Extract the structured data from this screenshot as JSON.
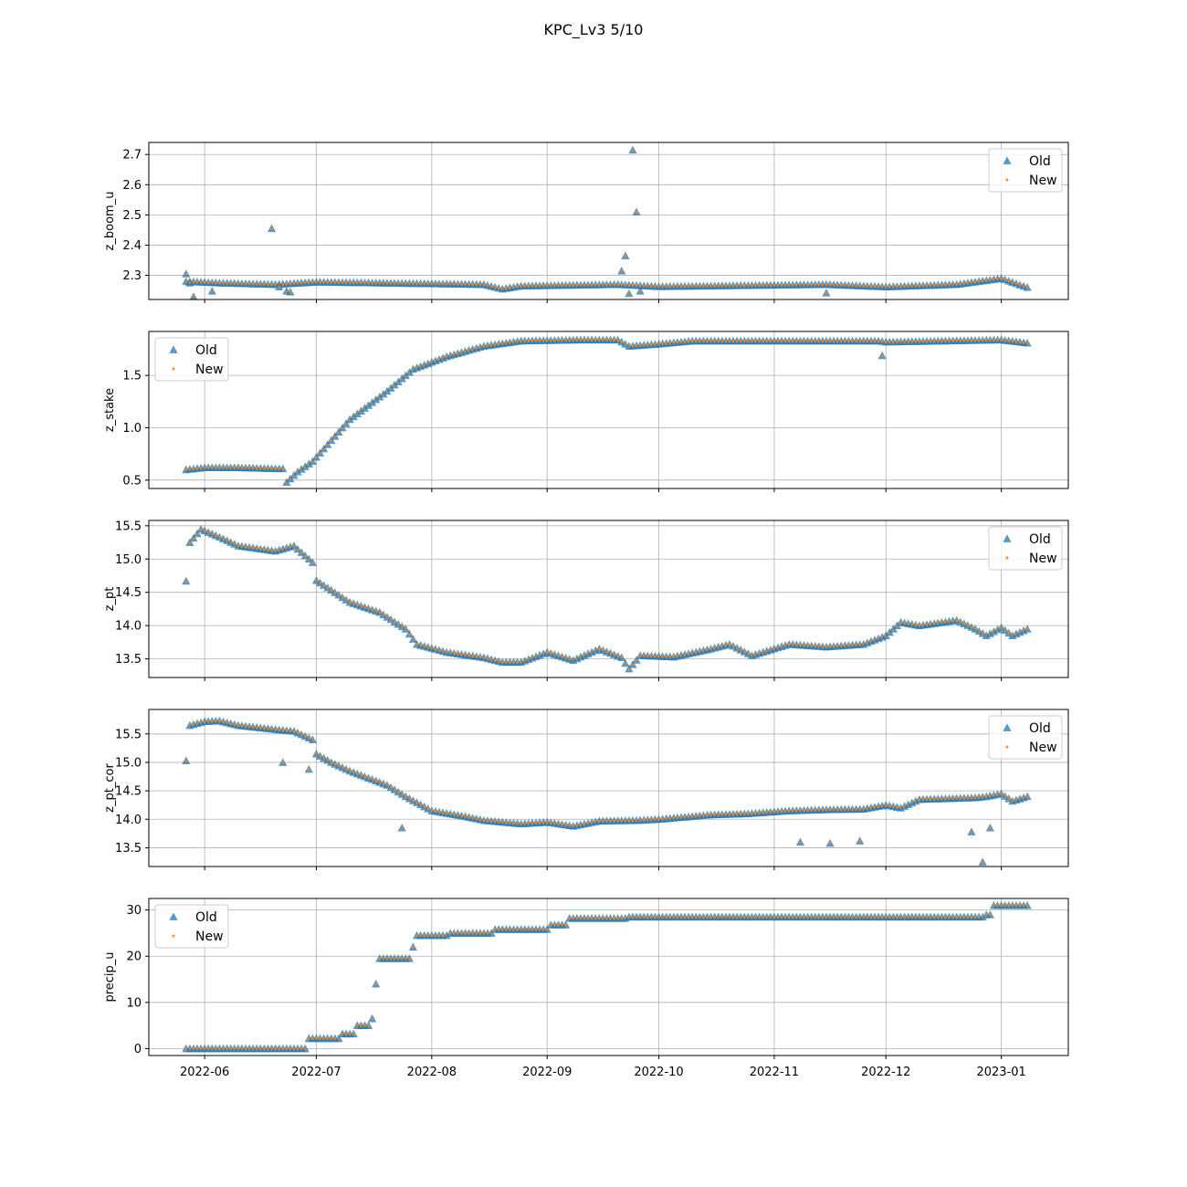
{
  "figure": {
    "title": "KPC_Lv3 5/10"
  },
  "colors": {
    "old": "#1f77b4",
    "new": "#ff7f0e",
    "grid": "#b0b0b0",
    "axis": "#000000"
  },
  "chart_data": [
    {
      "type": "scatter",
      "ylabel": "z_boom_u",
      "ylim": [
        2.22,
        2.74
      ],
      "yticks": [
        2.3,
        2.4,
        2.5,
        2.6,
        2.7
      ],
      "ytick_labels": [
        "2.3",
        "2.4",
        "2.5",
        "2.6",
        "2.7"
      ],
      "xlim": [
        "2022-05-17",
        "2023-01-19"
      ],
      "xticks": [
        "2022-06-01",
        "2022-07-01",
        "2022-08-01",
        "2022-09-01",
        "2022-10-01",
        "2022-11-01",
        "2022-12-01",
        "2023-01-01"
      ],
      "xtick_labels": [],
      "legend": "upper right",
      "grid": true,
      "series": [
        {
          "name": "Old",
          "marker": "triangle",
          "role": "old"
        },
        {
          "name": "New",
          "marker": "dot",
          "role": "new"
        }
      ],
      "profile": [
        [
          "2022-05-27",
          2.28
        ],
        [
          "2022-06-05",
          2.275
        ],
        [
          "2022-06-20",
          2.27
        ],
        [
          "2022-07-01",
          2.278
        ],
        [
          "2022-08-15",
          2.27
        ],
        [
          "2022-08-20",
          2.255
        ],
        [
          "2022-08-25",
          2.265
        ],
        [
          "2022-09-20",
          2.27
        ],
        [
          "2022-10-01",
          2.263
        ],
        [
          "2022-11-15",
          2.27
        ],
        [
          "2022-12-01",
          2.262
        ],
        [
          "2022-12-20",
          2.27
        ],
        [
          "2023-01-01",
          2.29
        ],
        [
          "2023-01-08",
          2.26
        ]
      ],
      "outliers": [
        [
          "2022-05-27",
          2.305
        ],
        [
          "2022-05-28",
          2.275
        ],
        [
          "2022-05-29",
          2.23
        ],
        [
          "2022-06-03",
          2.248
        ],
        [
          "2022-06-19",
          2.455
        ],
        [
          "2022-06-21",
          2.262
        ],
        [
          "2022-06-23",
          2.248
        ],
        [
          "2022-06-24",
          2.245
        ],
        [
          "2022-09-21",
          2.315
        ],
        [
          "2022-09-22",
          2.365
        ],
        [
          "2022-09-23",
          2.24
        ],
        [
          "2022-09-24",
          2.715
        ],
        [
          "2022-09-25",
          2.51
        ],
        [
          "2022-09-26",
          2.248
        ],
        [
          "2022-11-15",
          2.242
        ]
      ]
    },
    {
      "type": "scatter",
      "ylabel": "z_stake",
      "ylim": [
        0.42,
        1.92
      ],
      "yticks": [
        0.5,
        1.0,
        1.5
      ],
      "ytick_labels": [
        "0.5",
        "1.0",
        "1.5"
      ],
      "xlim": [
        "2022-05-17",
        "2023-01-19"
      ],
      "xticks": [
        "2022-06-01",
        "2022-07-01",
        "2022-08-01",
        "2022-09-01",
        "2022-10-01",
        "2022-11-01",
        "2022-12-01",
        "2023-01-01"
      ],
      "xtick_labels": [],
      "legend": "upper left",
      "grid": true,
      "series": [
        {
          "name": "Old",
          "marker": "triangle",
          "role": "old"
        },
        {
          "name": "New",
          "marker": "dot",
          "role": "new"
        }
      ],
      "profile": [
        [
          "2022-05-27",
          0.6
        ],
        [
          "2022-06-01",
          0.62
        ],
        [
          "2022-06-10",
          0.62
        ],
        [
          "2022-06-20",
          0.61
        ],
        [
          "2022-06-22",
          0.61
        ],
        [
          "2022-06-23",
          0.48
        ],
        [
          "2022-06-26",
          0.58
        ],
        [
          "2022-06-30",
          0.68
        ],
        [
          "2022-07-05",
          0.88
        ],
        [
          "2022-07-10",
          1.08
        ],
        [
          "2022-07-20",
          1.35
        ],
        [
          "2022-07-27",
          1.56
        ],
        [
          "2022-08-05",
          1.68
        ],
        [
          "2022-08-15",
          1.78
        ],
        [
          "2022-08-25",
          1.83
        ],
        [
          "2022-09-10",
          1.84
        ],
        [
          "2022-09-20",
          1.84
        ],
        [
          "2022-09-23",
          1.78
        ],
        [
          "2022-10-01",
          1.8
        ],
        [
          "2022-10-10",
          1.83
        ],
        [
          "2022-11-29",
          1.83
        ],
        [
          "2022-12-01",
          1.82
        ],
        [
          "2023-01-01",
          1.84
        ],
        [
          "2023-01-08",
          1.81
        ]
      ],
      "outliers": [
        [
          "2022-11-30",
          1.69
        ]
      ]
    },
    {
      "type": "scatter",
      "ylabel": "z_pt",
      "ylim": [
        13.22,
        15.58
      ],
      "yticks": [
        13.5,
        14.0,
        14.5,
        15.0,
        15.5
      ],
      "ytick_labels": [
        "13.5",
        "14.0",
        "14.5",
        "15.0",
        "15.5"
      ],
      "xlim": [
        "2022-05-17",
        "2023-01-19"
      ],
      "xticks": [
        "2022-06-01",
        "2022-07-01",
        "2022-08-01",
        "2022-09-01",
        "2022-10-01",
        "2022-11-01",
        "2022-12-01",
        "2023-01-01"
      ],
      "xtick_labels": [],
      "legend": "upper right",
      "grid": true,
      "series": [
        {
          "name": "Old",
          "marker": "triangle",
          "role": "old"
        },
        {
          "name": "New",
          "marker": "dot",
          "role": "new"
        }
      ],
      "profile": [
        [
          "2022-05-27",
          14.67
        ],
        [
          "2022-05-28",
          15.25
        ],
        [
          "2022-05-31",
          15.45
        ],
        [
          "2022-06-05",
          15.33
        ],
        [
          "2022-06-10",
          15.2
        ],
        [
          "2022-06-20",
          15.12
        ],
        [
          "2022-06-25",
          15.2
        ],
        [
          "2022-06-30",
          14.95
        ],
        [
          "2022-07-01",
          14.68
        ],
        [
          "2022-07-10",
          14.35
        ],
        [
          "2022-07-18",
          14.2
        ],
        [
          "2022-07-25",
          13.95
        ],
        [
          "2022-07-28",
          13.72
        ],
        [
          "2022-08-05",
          13.6
        ],
        [
          "2022-08-15",
          13.52
        ],
        [
          "2022-08-20",
          13.45
        ],
        [
          "2022-08-25",
          13.45
        ],
        [
          "2022-09-01",
          13.6
        ],
        [
          "2022-09-08",
          13.48
        ],
        [
          "2022-09-15",
          13.65
        ],
        [
          "2022-09-21",
          13.52
        ],
        [
          "2022-09-23",
          13.35
        ],
        [
          "2022-09-26",
          13.55
        ],
        [
          "2022-10-05",
          13.53
        ],
        [
          "2022-10-15",
          13.65
        ],
        [
          "2022-10-20",
          13.72
        ],
        [
          "2022-10-26",
          13.55
        ],
        [
          "2022-11-05",
          13.72
        ],
        [
          "2022-11-15",
          13.68
        ],
        [
          "2022-11-25",
          13.72
        ],
        [
          "2022-12-01",
          13.85
        ],
        [
          "2022-12-05",
          14.05
        ],
        [
          "2022-12-10",
          14.0
        ],
        [
          "2022-12-20",
          14.08
        ],
        [
          "2022-12-25",
          13.95
        ],
        [
          "2022-12-28",
          13.85
        ],
        [
          "2023-01-01",
          13.97
        ],
        [
          "2023-01-04",
          13.85
        ],
        [
          "2023-01-08",
          13.95
        ]
      ],
      "outliers": []
    },
    {
      "type": "scatter",
      "ylabel": "z_pt_cor",
      "ylim": [
        13.17,
        15.93
      ],
      "yticks": [
        13.5,
        14.0,
        14.5,
        15.0,
        15.5
      ],
      "ytick_labels": [
        "13.5",
        "14.0",
        "14.5",
        "15.0",
        "15.5"
      ],
      "xlim": [
        "2022-05-17",
        "2023-01-19"
      ],
      "xticks": [
        "2022-06-01",
        "2022-07-01",
        "2022-08-01",
        "2022-09-01",
        "2022-10-01",
        "2022-11-01",
        "2022-12-01",
        "2023-01-01"
      ],
      "xtick_labels": [],
      "legend": "upper right",
      "grid": true,
      "series": [
        {
          "name": "Old",
          "marker": "triangle",
          "role": "old"
        },
        {
          "name": "New",
          "marker": "dot",
          "role": "new"
        }
      ],
      "profile": [
        [
          "2022-05-27",
          15.03
        ],
        [
          "2022-05-28",
          15.65
        ],
        [
          "2022-06-01",
          15.72
        ],
        [
          "2022-06-05",
          15.73
        ],
        [
          "2022-06-10",
          15.65
        ],
        [
          "2022-06-20",
          15.58
        ],
        [
          "2022-06-25",
          15.55
        ],
        [
          "2022-06-30",
          15.4
        ],
        [
          "2022-07-01",
          15.15
        ],
        [
          "2022-07-05",
          15.0
        ],
        [
          "2022-07-10",
          14.85
        ],
        [
          "2022-07-20",
          14.6
        ],
        [
          "2022-07-25",
          14.4
        ],
        [
          "2022-08-01",
          14.15
        ],
        [
          "2022-08-10",
          14.05
        ],
        [
          "2022-08-15",
          13.98
        ],
        [
          "2022-08-25",
          13.92
        ],
        [
          "2022-09-01",
          13.95
        ],
        [
          "2022-09-08",
          13.88
        ],
        [
          "2022-09-15",
          13.97
        ],
        [
          "2022-09-25",
          13.98
        ],
        [
          "2022-10-01",
          14.0
        ],
        [
          "2022-10-15",
          14.08
        ],
        [
          "2022-10-25",
          14.1
        ],
        [
          "2022-11-05",
          14.15
        ],
        [
          "2022-11-15",
          14.17
        ],
        [
          "2022-11-25",
          14.18
        ],
        [
          "2022-12-01",
          14.25
        ],
        [
          "2022-12-05",
          14.2
        ],
        [
          "2022-12-10",
          14.35
        ],
        [
          "2022-12-25",
          14.38
        ],
        [
          "2022-12-28",
          14.4
        ],
        [
          "2023-01-01",
          14.45
        ],
        [
          "2023-01-04",
          14.32
        ],
        [
          "2023-01-08",
          14.4
        ]
      ],
      "outliers": [
        [
          "2022-06-22",
          15.0
        ],
        [
          "2022-06-29",
          14.88
        ],
        [
          "2022-07-24",
          13.85
        ],
        [
          "2022-11-08",
          13.6
        ],
        [
          "2022-11-16",
          13.58
        ],
        [
          "2022-11-24",
          13.62
        ],
        [
          "2022-12-24",
          13.78
        ],
        [
          "2022-12-27",
          13.25
        ],
        [
          "2022-12-29",
          13.85
        ]
      ]
    },
    {
      "type": "scatter",
      "ylabel": "precip_u",
      "ylim": [
        -1.5,
        32.5
      ],
      "yticks": [
        0,
        10,
        20,
        30
      ],
      "ytick_labels": [
        "0",
        "10",
        "20",
        "30"
      ],
      "xlim": [
        "2022-05-17",
        "2023-01-19"
      ],
      "xticks": [
        "2022-06-01",
        "2022-07-01",
        "2022-08-01",
        "2022-09-01",
        "2022-10-01",
        "2022-11-01",
        "2022-12-01",
        "2023-01-01"
      ],
      "xtick_labels": [
        "2022-06",
        "2022-07",
        "2022-08",
        "2022-09",
        "2022-10",
        "2022-11",
        "2022-12",
        "2023-01"
      ],
      "legend": "upper left",
      "grid": true,
      "series": [
        {
          "name": "Old",
          "marker": "triangle",
          "role": "old"
        },
        {
          "name": "New",
          "marker": "dot",
          "role": "new"
        }
      ],
      "steps": [
        [
          "2022-05-27",
          0.0
        ],
        [
          "2022-06-29",
          2.2
        ],
        [
          "2022-07-08",
          3.2
        ],
        [
          "2022-07-12",
          5.0
        ],
        [
          "2022-07-16",
          6.5
        ],
        [
          "2022-07-17",
          14.0
        ],
        [
          "2022-07-18",
          19.5
        ],
        [
          "2022-07-27",
          22.0
        ],
        [
          "2022-07-28",
          24.5
        ],
        [
          "2022-08-06",
          25.0
        ],
        [
          "2022-08-18",
          25.8
        ],
        [
          "2022-09-02",
          26.8
        ],
        [
          "2022-09-07",
          28.2
        ],
        [
          "2022-09-23",
          28.5
        ],
        [
          "2022-12-28",
          29.0
        ],
        [
          "2022-12-30",
          31.0
        ]
      ],
      "end": "2023-01-08"
    }
  ]
}
